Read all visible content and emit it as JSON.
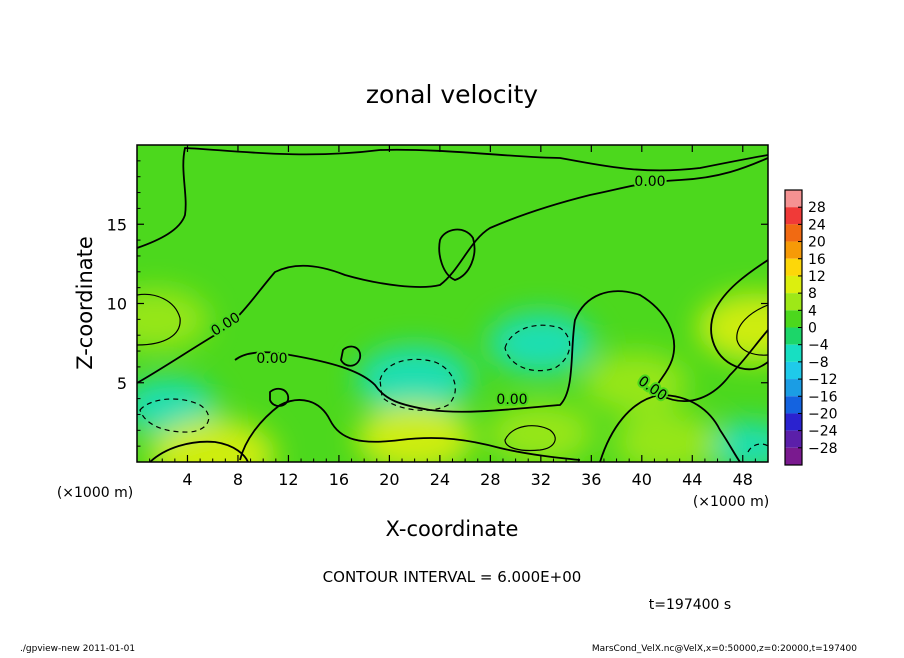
{
  "footer": {
    "program": "./gpview-new  2011-01-01",
    "source": "MarsCond_VelX.nc@VelX,x=0:50000,z=0:20000,t=197400"
  },
  "chart_data": {
    "type": "heatmap",
    "title": "zonal velocity",
    "xlabel": "X-coordinate",
    "ylabel": "Z-coordinate",
    "x_unit": "(×1000 m)",
    "y_unit": "(×1000 m)",
    "xlim": [
      0,
      50
    ],
    "ylim": [
      0,
      20
    ],
    "x_ticks": [
      4,
      8,
      12,
      16,
      20,
      24,
      28,
      32,
      36,
      40,
      44,
      48
    ],
    "y_ticks": [
      5,
      10,
      15
    ],
    "contour_interval_label": "CONTOUR INTERVAL = 6.000E+00",
    "time_label": "t=197400 s",
    "contour_labels": [
      "0.00",
      "0.00",
      "0.00",
      "0.00",
      "0.00"
    ],
    "colorbar": {
      "levels": [
        28,
        24,
        20,
        16,
        12,
        8,
        4,
        0,
        -4,
        -8,
        -12,
        -16,
        -20,
        -24,
        -28
      ],
      "level_labels": [
        "28",
        "24",
        "20",
        "16",
        "12",
        "8",
        "4",
        "0",
        "−4",
        "−8",
        "−12",
        "−16",
        "−20",
        "−24",
        "−28"
      ],
      "colors": [
        "#f59292",
        "#f03a38",
        "#f16a12",
        "#f69a07",
        "#fdd709",
        "#dcef0e",
        "#9ee817",
        "#4cd81d",
        "#1cd669",
        "#17dfc2",
        "#1fcaea",
        "#1b9de4",
        "#1463e0",
        "#2a22cf",
        "#5b1fa9",
        "#7a1a8f"
      ]
    },
    "features": [
      {
        "kind": "low",
        "x": 22,
        "z": 5.2,
        "value": -8
      },
      {
        "kind": "low",
        "x": 32,
        "z": 7.5,
        "value": -7
      },
      {
        "kind": "low",
        "x": 2.5,
        "z": 3.5,
        "value": -6
      },
      {
        "kind": "low",
        "x": 48.5,
        "z": 1.0,
        "value": -5
      },
      {
        "kind": "high",
        "x": 1.5,
        "z": 9.0,
        "value": 7
      },
      {
        "kind": "high",
        "x": 49,
        "z": 8.5,
        "value": 8
      },
      {
        "kind": "high",
        "x": 6,
        "z": 0.4,
        "value": 9
      },
      {
        "kind": "high",
        "x": 22,
        "z": 1.5,
        "value": 8
      },
      {
        "kind": "high",
        "x": 32,
        "z": 1.8,
        "value": 7
      },
      {
        "kind": "high",
        "x": 42,
        "z": 1.2,
        "value": 7
      },
      {
        "kind": "high",
        "x": 39.5,
        "z": 5.0,
        "value": 7
      }
    ],
    "background_value": 2
  }
}
